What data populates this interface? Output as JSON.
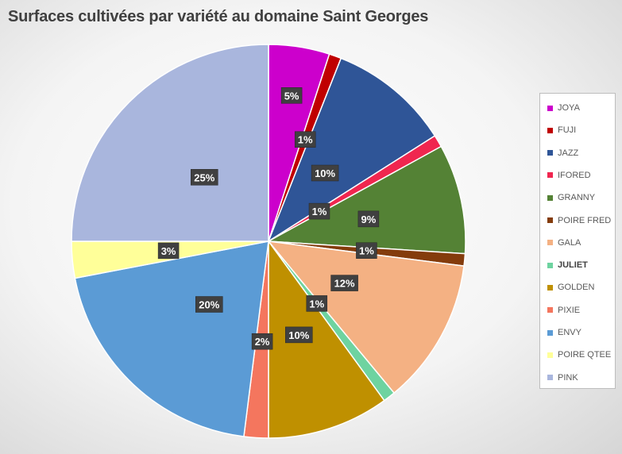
{
  "chart_data": {
    "type": "pie",
    "title": "Surfaces cultivées par variété au domaine Saint Georges",
    "legend_position": "right",
    "start_angle": "12-o'clock",
    "direction": "clockwise",
    "slices": [
      {
        "name": "JOYA",
        "value": 5,
        "label": "5%",
        "color": "#CC00CC"
      },
      {
        "name": "FUJI",
        "value": 1,
        "label": "1%",
        "color": "#C00000"
      },
      {
        "name": "JAZZ",
        "value": 10,
        "label": "10%",
        "color": "#2F5597"
      },
      {
        "name": "IFORED",
        "value": 1,
        "label": "1%",
        "color": "#F0264F"
      },
      {
        "name": "GRANNY",
        "value": 9,
        "label": "9%",
        "color": "#548235"
      },
      {
        "name": "POIRE FRED",
        "value": 1,
        "label": "1%",
        "color": "#843C0C"
      },
      {
        "name": "GALA",
        "value": 12,
        "label": "12%",
        "color": "#F4B183"
      },
      {
        "name": "JULIET",
        "value": 1,
        "label": "1%",
        "color": "#6ED3A0"
      },
      {
        "name": "GOLDEN",
        "value": 10,
        "label": "10%",
        "color": "#BF9000"
      },
      {
        "name": "PIXIE",
        "value": 2,
        "label": "2%",
        "color": "#F4765E"
      },
      {
        "name": "ENVY",
        "value": 20,
        "label": "20%",
        "color": "#5B9BD5"
      },
      {
        "name": "POIRE QTEE",
        "value": 3,
        "label": "3%",
        "color": "#FFFF99"
      },
      {
        "name": "PINK",
        "value": 25,
        "label": "25%",
        "color": "#A9B6DD"
      }
    ]
  }
}
